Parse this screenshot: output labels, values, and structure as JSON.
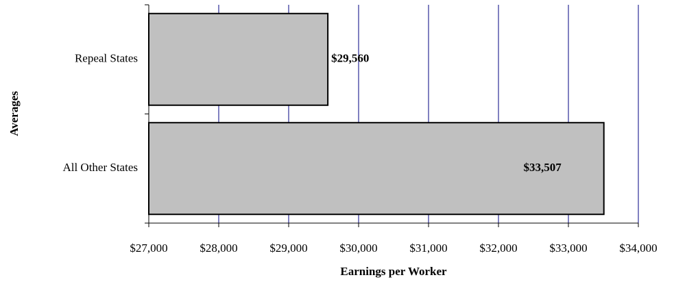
{
  "chart_data": {
    "type": "barh",
    "categories": [
      "Repeal States",
      "All Other States"
    ],
    "values": [
      29560,
      33507
    ],
    "value_labels": [
      "$29,560",
      "$33,507"
    ],
    "color": "#c0c0c0",
    "xlabel": "Earnings per Worker",
    "ylabel": "Averages",
    "xlim": [
      27000,
      34000
    ],
    "xticks": [
      {
        "value": 27000,
        "label": "$27,000"
      },
      {
        "value": 28000,
        "label": "$28,000"
      },
      {
        "value": 29000,
        "label": "$29,000"
      },
      {
        "value": 30000,
        "label": "$30,000"
      },
      {
        "value": 31000,
        "label": "$31,000"
      },
      {
        "value": 32000,
        "label": "$32,000"
      },
      {
        "value": 33000,
        "label": "$33,000"
      },
      {
        "value": 34000,
        "label": "$34,000"
      }
    ],
    "grid": true,
    "grid_color": "#000080"
  }
}
